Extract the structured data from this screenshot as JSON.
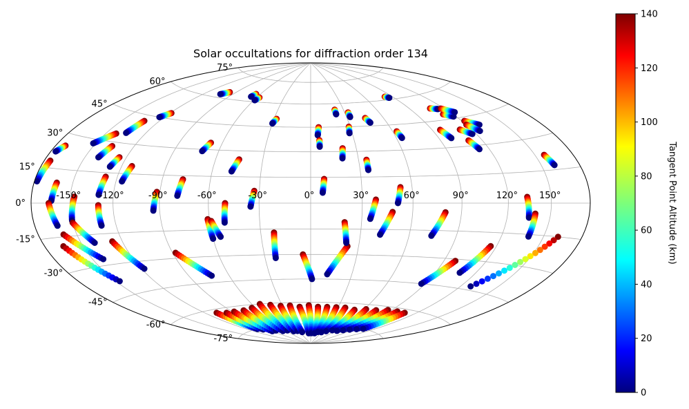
{
  "chart_data": {
    "type": "scatter",
    "projection": "hammer",
    "title": "Solar occultations for diffraction order 134",
    "lon_ticks": [
      "-150°",
      "-120°",
      "-90°",
      "-60°",
      "-30°",
      "0°",
      "30°",
      "60°",
      "90°",
      "120°",
      "150°"
    ],
    "lon_tick_values": [
      -150,
      -120,
      -90,
      -60,
      -30,
      0,
      30,
      60,
      90,
      120,
      150
    ],
    "lat_ticks": [
      "-75°",
      "-60°",
      "-45°",
      "-30°",
      "-15°",
      "0°",
      "15°",
      "30°",
      "45°",
      "60°",
      "75°"
    ],
    "lat_tick_values": [
      -75,
      -60,
      -45,
      -30,
      -15,
      0,
      15,
      30,
      45,
      60,
      75
    ],
    "grid": true,
    "colorbar": {
      "label": "Tangent Point Altitude (km)",
      "min": 0,
      "max": 140,
      "ticks": [
        "0",
        "20",
        "40",
        "60",
        "80",
        "100",
        "120",
        "140"
      ],
      "tick_values": [
        0,
        20,
        40,
        60,
        80,
        100,
        120,
        140
      ],
      "colormap": "jet",
      "position": "right"
    },
    "tracks": [
      {
        "lon": -172,
        "lat": 25,
        "lon2": -176,
        "lat2": 22
      },
      {
        "lon": -175,
        "lat": 18,
        "lon2": -178,
        "lat2": 9
      },
      {
        "lon": -162,
        "lat": 9,
        "lon2": -164,
        "lat2": 1
      },
      {
        "lon": -166,
        "lat": 0,
        "lon2": -162,
        "lat2": -10
      },
      {
        "lon": -165,
        "lat": -19,
        "lon2": -147,
        "lat2": -38
      },
      {
        "lon": -160,
        "lat": -14,
        "lon2": -142,
        "lat2": -27
      },
      {
        "lon": -147,
        "lat": 3,
        "lon2": -150,
        "lat2": -8
      },
      {
        "lon": -150,
        "lat": -9,
        "lon2": -140,
        "lat2": -19
      },
      {
        "lon": -142,
        "lat": 34,
        "lon2": -152,
        "lat2": 28
      },
      {
        "lon": -136,
        "lat": 28,
        "lon2": -140,
        "lat2": 22
      },
      {
        "lon": -132,
        "lat": 42,
        "lon2": -135,
        "lat2": 35
      },
      {
        "lon": -119,
        "lat": 48,
        "lon2": -124,
        "lat2": 45
      },
      {
        "lon": -128,
        "lat": 13,
        "lon2": -130,
        "lat2": 4
      },
      {
        "lon": -130,
        "lat": -1,
        "lon2": -130,
        "lat2": -11
      },
      {
        "lon": -125,
        "lat": 23,
        "lon2": -128,
        "lat2": 18
      },
      {
        "lon": -127,
        "lat": -19,
        "lon2": -118,
        "lat2": -34
      },
      {
        "lon": -113,
        "lat": 19,
        "lon2": -116,
        "lat2": 11
      },
      {
        "lon": -97,
        "lat": 64,
        "lon2": -103,
        "lat2": 62
      },
      {
        "lon": -92,
        "lat": 6,
        "lon2": -94,
        "lat2": -4
      },
      {
        "lon": -88,
        "lat": -27,
        "lon2": -73,
        "lat2": -41
      },
      {
        "lon": -77,
        "lat": 13,
        "lon2": -79,
        "lat2": 4
      },
      {
        "lon": -68,
        "lat": 34,
        "lon2": -71,
        "lat2": 29
      },
      {
        "lon": -65,
        "lat": 65,
        "lon2": -67,
        "lat2": 63
      },
      {
        "lon": -57,
        "lat": 63,
        "lon2": -59,
        "lat2": 61
      },
      {
        "lon": -61,
        "lat": -9,
        "lon2": -60,
        "lat2": -20
      },
      {
        "lon": -59,
        "lat": -10,
        "lon2": -55,
        "lat2": -19
      },
      {
        "lon": -45,
        "lat": 25,
        "lon2": -48,
        "lat2": 18
      },
      {
        "lon": -50,
        "lat": 0,
        "lon2": -51,
        "lat2": -11
      },
      {
        "lon": -33,
        "lat": 7,
        "lon2": -35,
        "lat2": -2
      },
      {
        "lon": -28,
        "lat": 50,
        "lon2": -30,
        "lat2": 47
      },
      {
        "lon": -22,
        "lat": -17,
        "lon2": -23,
        "lat2": -32
      },
      {
        "lon": 6,
        "lat": 45,
        "lon2": 5,
        "lat2": 40
      },
      {
        "lon": 6,
        "lat": 37,
        "lon2": 6,
        "lat2": 33
      },
      {
        "lon": 8,
        "lat": 14,
        "lon2": 7,
        "lat2": 6
      },
      {
        "lon": -5,
        "lat": -30,
        "lon2": 1,
        "lat2": -45
      },
      {
        "lon": 23,
        "lat": -25,
        "lon2": 12,
        "lat2": -42
      },
      {
        "lon": 21,
        "lat": 32,
        "lon2": 20,
        "lat2": 26
      },
      {
        "lon": 20,
        "lat": -11,
        "lon2": 22,
        "lat2": -23
      },
      {
        "lon": 22,
        "lat": 56,
        "lon2": 22,
        "lat2": 53
      },
      {
        "lon": 29,
        "lat": 45,
        "lon2": 28,
        "lat2": 41
      },
      {
        "lon": 33,
        "lat": 54,
        "lon2": 33,
        "lat2": 51
      },
      {
        "lon": 35,
        "lat": 25,
        "lon2": 35,
        "lat2": 19
      },
      {
        "lon": 38,
        "lat": 2,
        "lon2": 35,
        "lat2": -9
      },
      {
        "lon": 48,
        "lat": -5,
        "lon2": 42,
        "lat2": -18
      },
      {
        "lon": 45,
        "lat": 50,
        "lon2": 47,
        "lat2": 47
      },
      {
        "lon": 53,
        "lat": 9,
        "lon2": 51,
        "lat2": 0
      },
      {
        "lon": 63,
        "lat": 41,
        "lon2": 64,
        "lat2": 37
      },
      {
        "lon": 80,
        "lat": -5,
        "lon2": 74,
        "lat2": -18
      },
      {
        "lon": 82,
        "lat": 62,
        "lon2": 85,
        "lat2": 61
      },
      {
        "lon": 98,
        "lat": -31,
        "lon2": 87,
        "lat2": -45
      },
      {
        "lon": 96,
        "lat": 40,
        "lon2": 99,
        "lat2": 35
      },
      {
        "lon": 108,
        "lat": 52,
        "lon2": 114,
        "lat2": 51
      },
      {
        "lon": 112,
        "lat": 48,
        "lon2": 118,
        "lat2": 46
      },
      {
        "lon": 117,
        "lat": 51,
        "lon2": 124,
        "lat2": 48
      },
      {
        "lon": 122,
        "lat": 43,
        "lon2": 130,
        "lat2": 40
      },
      {
        "lon": 111,
        "lat": 39,
        "lon2": 117,
        "lat2": 36
      },
      {
        "lon": 110,
        "lat": 33,
        "lon2": 113,
        "lat2": 28
      },
      {
        "lon": 120,
        "lat": 41,
        "lon2": 125,
        "lat2": 37
      },
      {
        "lon": 116,
        "lat": -22,
        "lon2": 108,
        "lat2": -37
      },
      {
        "lon": 133,
        "lat": 3,
        "lon2": 135,
        "lat2": -7
      },
      {
        "lon": 139,
        "lat": -5,
        "lon2": 139,
        "lat2": -16
      },
      {
        "lon": 161,
        "lat": -15,
        "lon2": 128,
        "lat2": -43
      },
      {
        "lon": 157,
        "lat": 22,
        "lon2": 160,
        "lat2": 17
      }
    ],
    "south_cluster": [
      {
        "lon": -108,
        "lat": -62,
        "lon2": -105,
        "lat2": -75
      },
      {
        "lon": -98,
        "lat": -63,
        "lon2": -98,
        "lat2": -76
      },
      {
        "lon": -88,
        "lat": -63,
        "lon2": -90,
        "lat2": -78
      },
      {
        "lon": -76,
        "lat": -63,
        "lon2": -80,
        "lat2": -78
      },
      {
        "lon": -64,
        "lat": -62,
        "lon2": -68,
        "lat2": -79
      },
      {
        "lon": -52,
        "lat": -60,
        "lon2": -56,
        "lat2": -79
      },
      {
        "lon": -42,
        "lat": -61,
        "lon2": -44,
        "lat2": -80
      },
      {
        "lon": -32,
        "lat": -62,
        "lon2": -34,
        "lat2": -80
      },
      {
        "lon": -22,
        "lat": -62,
        "lon2": -24,
        "lat2": -81
      },
      {
        "lon": -12,
        "lat": -63,
        "lon2": -6,
        "lat2": -82
      },
      {
        "lon": -2,
        "lat": -62,
        "lon2": 2,
        "lat2": -82
      },
      {
        "lon": 8,
        "lat": -63,
        "lon2": 12,
        "lat2": -82
      },
      {
        "lon": 18,
        "lat": -63,
        "lon2": 20,
        "lat2": -81
      },
      {
        "lon": 28,
        "lat": -63,
        "lon2": 30,
        "lat2": -81
      },
      {
        "lon": 38,
        "lat": -63,
        "lon2": 40,
        "lat2": -80
      },
      {
        "lon": 50,
        "lat": -64,
        "lon2": 52,
        "lat2": -79
      },
      {
        "lon": 62,
        "lat": -63,
        "lon2": 64,
        "lat2": -79
      },
      {
        "lon": 74,
        "lat": -63,
        "lon2": 74,
        "lat2": -78
      },
      {
        "lon": 86,
        "lat": -62,
        "lon2": 84,
        "lat2": -77
      },
      {
        "lon": 98,
        "lat": -62,
        "lon2": 94,
        "lat2": -76
      },
      {
        "lon": 108,
        "lat": -62,
        "lon2": 103,
        "lat2": -75
      }
    ]
  }
}
